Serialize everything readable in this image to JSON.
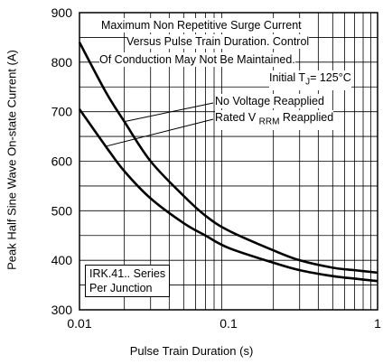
{
  "chart_data": {
    "type": "line",
    "xscale": "log",
    "xlim": [
      0.01,
      1
    ],
    "ylim": [
      300,
      900
    ],
    "x_ticks": [
      "0.01",
      "0.1",
      "1"
    ],
    "y_ticks": [
      "300",
      "400",
      "500",
      "600",
      "700",
      "800",
      "900"
    ],
    "xlabel": "Pulse Train Duration (s)",
    "ylabel": "Peak Half Sine Wave On-state Current (A)",
    "grid": true,
    "annotations": {
      "line1": "Maximum Non Repetitive Surge Current",
      "line2": "Versus Pulse Train Duration. Control",
      "line3": "Of Conduction May Not Be Maintained.",
      "line4": "Initial T",
      "line4_sub": "J",
      "line4_end": "= 125°C",
      "label_upper": "No Voltage Reapplied",
      "label_lower_a": "Rated V",
      "label_lower_sub": "RRM",
      "label_lower_b": "Reapplied",
      "box_line1": "IRK.41.. Series",
      "box_line2": "Per Junction"
    },
    "series": [
      {
        "name": "No Voltage Reapplied",
        "x": [
          0.01,
          0.015,
          0.02,
          0.03,
          0.05,
          0.07,
          0.1,
          0.2,
          0.3,
          0.5,
          0.7,
          1
        ],
        "y": [
          840,
          740,
          680,
          600,
          530,
          490,
          460,
          420,
          400,
          385,
          380,
          375
        ]
      },
      {
        "name": "Rated VRRM Reapplied",
        "x": [
          0.01,
          0.015,
          0.02,
          0.03,
          0.05,
          0.07,
          0.1,
          0.2,
          0.3,
          0.5,
          0.7,
          1
        ],
        "y": [
          705,
          630,
          580,
          525,
          475,
          450,
          425,
          395,
          380,
          368,
          363,
          358
        ]
      }
    ]
  }
}
